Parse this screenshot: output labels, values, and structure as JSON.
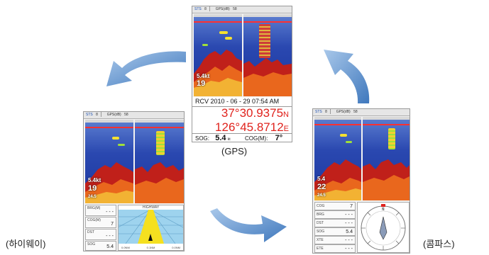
{
  "status_bar": {
    "sts_label": "STS",
    "sts_count": "8",
    "gps_label": "GPS(dB)",
    "gps_value": "58"
  },
  "gps_screen": {
    "rcv_line": "RCV  2010 - 06 - 29 07:54 AM",
    "latitude": "37°30.9375",
    "lat_hemi": "N",
    "longitude": "126°45.8712",
    "lon_hemi": "E",
    "sog_label": "SOG:",
    "sog_value": "5.4",
    "sog_unit": "kt",
    "cog_label": "COG(M):",
    "cog_value": "7°"
  },
  "highway_screen": {
    "readout_1": "5.4kt",
    "readout_2": "19",
    "readout_3": "24.5",
    "bearing_label": "BRG(M)",
    "bearing_value": "- - -",
    "course_label": "COG(M)",
    "course_value": "7",
    "dist_label": "DST",
    "dist_value": "- - -",
    "sog_label": "SOG",
    "sog_value": "5.4",
    "hwy_title": "HIGHWAY",
    "scale_left": "0.0NM",
    "scale_mid": "0.1NM",
    "scale_right": "0.0NM"
  },
  "compass_screen": {
    "readout_1": "5.4",
    "readout_2": "22",
    "readout_3": "24.5",
    "rows": [
      {
        "label": "COG",
        "value": "7"
      },
      {
        "label": "BRG",
        "value": "- - -"
      },
      {
        "label": "DST",
        "value": "- - -"
      },
      {
        "label": "SOG",
        "value": "5.4"
      },
      {
        "label": "XTE",
        "value": "- - -"
      },
      {
        "label": "ETE",
        "value": "- - -"
      }
    ],
    "n_label": "N"
  },
  "captions": {
    "gps": "(GPS)",
    "highway": "(하이웨이)",
    "compass": "(콤파스)"
  },
  "colors": {
    "arrow_fill": "#4f86c6",
    "coord_red": "#e0231d"
  }
}
